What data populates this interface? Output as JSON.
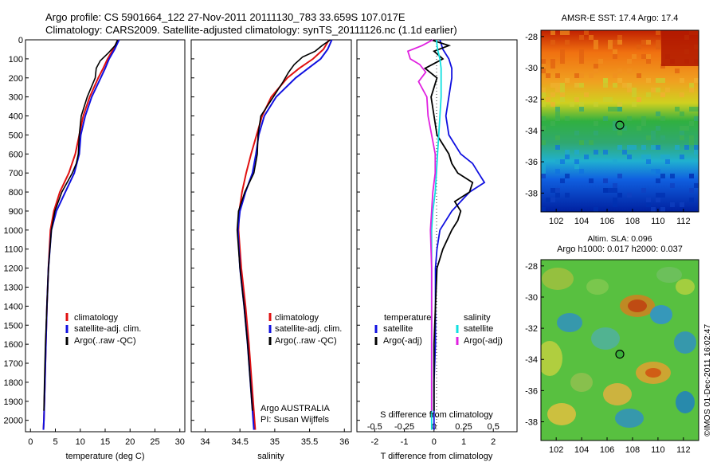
{
  "header": {
    "line1": "Argo profile: CS 5901664_122 27-Nov-2011 20111130_783 33.659S 107.017E",
    "line2": "Climatology: CARS2009. Satellite-adjusted climatology: synTS_20111126.nc (1.1d earlier)"
  },
  "footer": {
    "credit": "©IMOS 01-Dec-2011 16:02:47"
  },
  "colors": {
    "climatology": "#e01010",
    "satellite": "#1010e0",
    "argo": "#000000",
    "salinity_satellite": "#10e0e0",
    "salinity_argo": "#e020e0"
  },
  "chart_data": [
    {
      "type": "line",
      "name": "temperature-profile",
      "xlabel": "temperature (deg C)",
      "xlim": [
        -1,
        31
      ],
      "ylim": [
        2060,
        0
      ],
      "xticks": [
        "0",
        "5",
        "10",
        "15",
        "20",
        "25",
        "30"
      ],
      "yticks": [
        "0",
        "100",
        "200",
        "300",
        "400",
        "500",
        "600",
        "700",
        "800",
        "900",
        "1000",
        "1100",
        "1200",
        "1300",
        "1400",
        "1500",
        "1600",
        "1700",
        "1800",
        "1900",
        "2000"
      ],
      "legend": [
        "climatology",
        "satellite-adj. clim.",
        "Argo(..raw -QC)"
      ],
      "series": [
        {
          "name": "climatology",
          "depth": [
            0,
            50,
            100,
            150,
            200,
            300,
            400,
            500,
            600,
            700,
            800,
            900,
            1000,
            1200,
            1400,
            1600,
            1800,
            2000,
            2050
          ],
          "values": [
            17.6,
            16.6,
            15.5,
            14.6,
            13.6,
            11.9,
            10.6,
            9.8,
            9.0,
            7.7,
            5.9,
            4.7,
            4.0,
            3.6,
            3.3,
            3.1,
            2.9,
            2.7,
            2.6
          ]
        },
        {
          "name": "satellite-adj. clim.",
          "depth": [
            0,
            50,
            100,
            150,
            200,
            300,
            400,
            500,
            600,
            700,
            800,
            900,
            1000,
            1200,
            1400,
            1600,
            1800,
            2000,
            2050
          ],
          "values": [
            17.8,
            16.9,
            15.8,
            15.0,
            14.1,
            12.3,
            11.0,
            10.1,
            9.8,
            8.8,
            7.0,
            5.2,
            4.2,
            3.6,
            3.3,
            3.1,
            2.9,
            2.7,
            2.6
          ]
        },
        {
          "name": "Argo(..raw -QC)",
          "depth": [
            0,
            30,
            70,
            110,
            150,
            200,
            300,
            400,
            500,
            600,
            650,
            700,
            800,
            900,
            1000,
            1200,
            1400,
            1600,
            1800,
            1950
          ],
          "values": [
            17.5,
            17.0,
            15.6,
            14.0,
            13.2,
            13.0,
            11.4,
            10.2,
            9.8,
            9.6,
            9.2,
            8.4,
            6.3,
            4.9,
            4.2,
            3.6,
            3.3,
            3.0,
            2.8,
            2.7
          ]
        }
      ]
    },
    {
      "type": "line",
      "name": "salinity-profile",
      "xlabel": "salinity",
      "xlim": [
        33.8,
        36.1
      ],
      "ylim": [
        2060,
        0
      ],
      "xticks": [
        "34",
        "34.5",
        "35",
        "35.5",
        "36"
      ],
      "legend": [
        "climatology",
        "satellite-adj. clim.",
        "Argo(..raw -QC)"
      ],
      "annotations": [
        "Argo AUSTRALIA",
        "PI: Susan Wijffels"
      ],
      "series": [
        {
          "name": "climatology",
          "depth": [
            0,
            50,
            100,
            150,
            200,
            300,
            400,
            500,
            600,
            700,
            800,
            900,
            1000,
            1200,
            1400,
            1600,
            1800,
            2000,
            2050
          ],
          "values": [
            35.78,
            35.7,
            35.55,
            35.35,
            35.18,
            34.95,
            34.82,
            34.74,
            34.66,
            34.59,
            34.53,
            34.49,
            34.48,
            34.52,
            34.58,
            34.63,
            34.67,
            34.71,
            34.72
          ]
        },
        {
          "name": "satellite-adj. clim.",
          "depth": [
            0,
            50,
            100,
            150,
            200,
            300,
            400,
            500,
            600,
            700,
            800,
            900,
            1000,
            1200,
            1400,
            1600,
            1800,
            2000,
            2050
          ],
          "values": [
            35.82,
            35.76,
            35.66,
            35.48,
            35.3,
            35.02,
            34.85,
            34.77,
            34.73,
            34.68,
            34.58,
            34.5,
            34.47,
            34.5,
            34.56,
            34.61,
            34.65,
            34.69,
            34.7
          ]
        },
        {
          "name": "Argo(..raw -QC)",
          "depth": [
            0,
            30,
            60,
            90,
            130,
            170,
            220,
            300,
            400,
            500,
            600,
            700,
            800,
            900,
            1000,
            1200,
            1400,
            1600,
            1800,
            1950
          ],
          "values": [
            35.8,
            35.68,
            35.58,
            35.4,
            35.28,
            35.2,
            35.12,
            34.98,
            34.8,
            34.76,
            34.75,
            34.7,
            34.57,
            34.48,
            34.46,
            34.5,
            34.56,
            34.61,
            34.65,
            34.68
          ]
        }
      ]
    },
    {
      "type": "line",
      "name": "difference-profile",
      "xlabel": "T difference from climatology",
      "xlabel_top": "S difference from climatology",
      "xlim": [
        -2.6,
        2.8
      ],
      "ylim": [
        2060,
        0
      ],
      "xticks": [
        "-2",
        "-1",
        "0",
        "1",
        "2"
      ],
      "xticks_top": [
        "-0.5",
        "-0.25",
        "0",
        "0.25",
        "0.5"
      ],
      "legend_titles": [
        "temperature",
        "salinity"
      ],
      "legend": [
        "satellite",
        "Argo(-adj)",
        "satellite",
        "Argo(-adj)"
      ],
      "series": [
        {
          "name": "T satellite",
          "depth": [
            0,
            50,
            100,
            150,
            200,
            300,
            400,
            500,
            600,
            650,
            700,
            750,
            800,
            900,
            1000,
            1100,
            1200,
            1400,
            1600,
            1800,
            2000,
            2050
          ],
          "values": [
            0.2,
            0.3,
            0.5,
            0.6,
            0.6,
            0.5,
            0.4,
            0.5,
            0.9,
            1.3,
            1.5,
            1.7,
            1.2,
            0.6,
            0.2,
            0.1,
            0.05,
            0.05,
            0.05,
            0.0,
            0.0,
            0.0
          ]
        },
        {
          "name": "T Argo(-adj)",
          "depth": [
            0,
            30,
            60,
            100,
            150,
            200,
            300,
            400,
            500,
            600,
            650,
            700,
            750,
            800,
            850,
            900,
            950,
            1000,
            1100,
            1200,
            1400,
            1600,
            1800,
            1950
          ],
          "values": [
            -0.1,
            0.5,
            0.0,
            0.3,
            -0.3,
            0.1,
            -0.1,
            0.0,
            0.1,
            0.5,
            0.6,
            0.8,
            1.3,
            1.2,
            0.7,
            0.9,
            0.8,
            0.6,
            0.3,
            0.1,
            0.05,
            0.0,
            0.0,
            0.0
          ]
        },
        {
          "name": "S satellite",
          "depth": [
            0,
            50,
            100,
            150,
            200,
            300,
            400,
            500,
            600,
            700,
            800,
            900,
            1000,
            1200,
            1400,
            1600,
            1800,
            2000,
            2050
          ],
          "values": [
            0.02,
            0.03,
            0.05,
            0.06,
            0.06,
            0.06,
            0.05,
            0.04,
            0.03,
            0.02,
            0.01,
            -0.01,
            -0.02,
            -0.02,
            -0.02,
            -0.02,
            -0.02,
            -0.02,
            -0.02
          ]
        },
        {
          "name": "S Argo(-adj)",
          "depth": [
            0,
            30,
            60,
            100,
            130,
            170,
            220,
            300,
            400,
            500,
            600,
            700,
            800,
            900,
            1000,
            1200,
            1400,
            1600,
            1800,
            1950
          ],
          "values": [
            -0.01,
            -0.1,
            -0.22,
            -0.2,
            -0.12,
            -0.07,
            -0.13,
            -0.06,
            -0.05,
            -0.02,
            0.01,
            0.01,
            -0.01,
            -0.02,
            -0.03,
            -0.02,
            -0.02,
            -0.02,
            -0.02,
            -0.02
          ]
        }
      ]
    },
    {
      "type": "heatmap",
      "name": "sst-map",
      "title": "AMSR-E SST: 17.4 Argo: 17.4",
      "xlim": [
        100.8,
        113.2
      ],
      "ylim": [
        -39.2,
        -27.6
      ],
      "xticks": [
        "102",
        "104",
        "106",
        "108",
        "110",
        "112"
      ],
      "yticks": [
        "-28",
        "-30",
        "-32",
        "-34",
        "-36",
        "-38"
      ],
      "marker": {
        "lon": 107.0,
        "lat": -33.66
      }
    },
    {
      "type": "heatmap",
      "name": "sla-map",
      "title": "Altim. SLA: 0.096",
      "subtitle": "Argo h1000: 0.017 h2000: 0.037",
      "xlim": [
        100.8,
        113.2
      ],
      "ylim": [
        -39.2,
        -27.6
      ],
      "xticks": [
        "102",
        "104",
        "106",
        "108",
        "110",
        "112"
      ],
      "yticks": [
        "-28",
        "-30",
        "-32",
        "-34",
        "-36",
        "-38"
      ],
      "marker": {
        "lon": 107.0,
        "lat": -33.66
      }
    }
  ]
}
